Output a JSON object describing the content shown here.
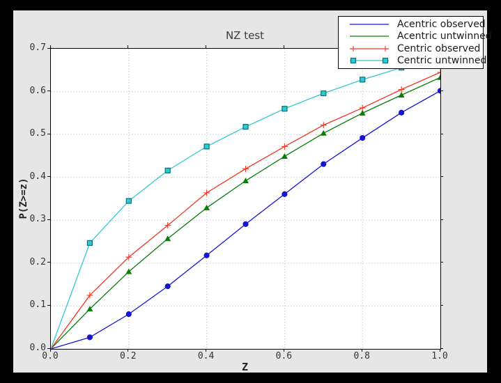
{
  "window": {
    "background": "#000000",
    "figure_background": "#e6e6e6",
    "plot_background": "#ffffff"
  },
  "chart_data": {
    "type": "line",
    "title": "NZ test",
    "xlabel": "Z",
    "ylabel": "P(Z>=z)",
    "xlim": [
      0.0,
      1.0
    ],
    "ylim": [
      0.0,
      0.7
    ],
    "grid": true,
    "grid_color": "#c8c8c8",
    "legend_position": "upper right",
    "xtick_labels": [
      "0.0",
      "0.2",
      "0.4",
      "0.6",
      "0.8",
      "1.0"
    ],
    "xtick_values": [
      0.0,
      0.2,
      0.4,
      0.6,
      0.8,
      1.0
    ],
    "ytick_labels": [
      "0.0",
      "0.1",
      "0.2",
      "0.3",
      "0.4",
      "0.5",
      "0.6",
      "0.7"
    ],
    "ytick_values": [
      0.0,
      0.1,
      0.2,
      0.3,
      0.4,
      0.5,
      0.6,
      0.7
    ],
    "x": [
      0.0,
      0.1,
      0.2,
      0.3,
      0.4,
      0.5,
      0.6,
      0.7,
      0.8,
      0.9,
      1.0
    ],
    "series": [
      {
        "name": "Acentric observed",
        "color": "#1414d2",
        "marker": "circle",
        "legend_marker": "none",
        "values": [
          0.0,
          0.027,
          0.081,
          0.146,
          0.218,
          0.291,
          0.361,
          0.431,
          0.492,
          0.551,
          0.602
        ]
      },
      {
        "name": "Acentric untwinned",
        "color": "#067d06",
        "marker": "triangle",
        "legend_marker": "none",
        "values": [
          0.0,
          0.093,
          0.18,
          0.257,
          0.329,
          0.392,
          0.449,
          0.503,
          0.55,
          0.592,
          0.633
        ]
      },
      {
        "name": "Centric observed",
        "color": "#f5331f",
        "marker": "plus",
        "legend_marker": "plus",
        "values": [
          0.0,
          0.125,
          0.214,
          0.288,
          0.364,
          0.42,
          0.472,
          0.522,
          0.562,
          0.605,
          0.645
        ]
      },
      {
        "name": "Centric untwinned",
        "color": "#30c8d2",
        "marker": "square",
        "marker_edge": "#0f6e78",
        "legend_marker": "square",
        "values": [
          0.0,
          0.247,
          0.345,
          0.416,
          0.472,
          0.518,
          0.56,
          0.596,
          0.628,
          0.656,
          0.683
        ]
      }
    ]
  }
}
